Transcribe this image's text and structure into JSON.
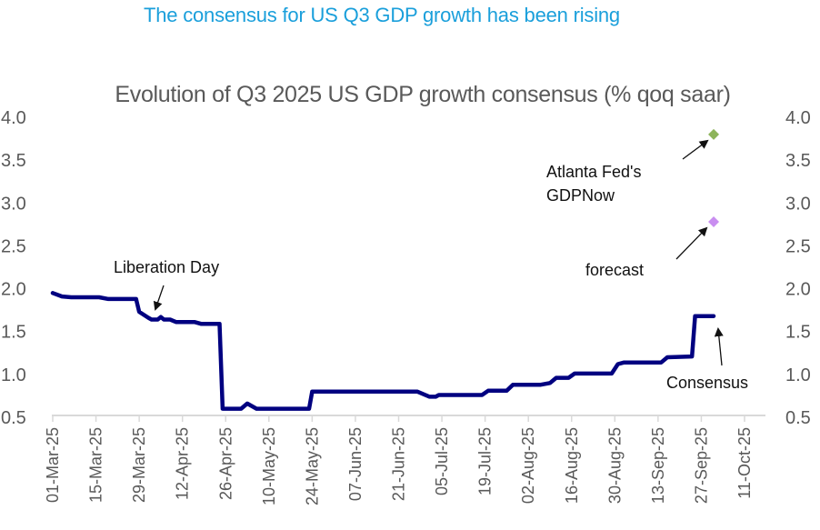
{
  "headline": "The consensus for US Q3 GDP growth has been rising",
  "chart_data": {
    "type": "line",
    "title": "Evolution of Q3 2025 US GDP growth consensus (% qoq saar)",
    "xlabel": "",
    "ylabel": "",
    "ylim": [
      0.5,
      4.0
    ],
    "yticks": [
      "4.0",
      "3.5",
      "3.0",
      "2.5",
      "2.0",
      "1.5",
      "1.0",
      "0.5"
    ],
    "ytick_values": [
      4.0,
      3.5,
      3.0,
      2.5,
      2.0,
      1.5,
      1.0,
      0.5
    ],
    "xlim_days_from_start": [
      0,
      224
    ],
    "x_start_date": "01-Mar-25",
    "xticks": [
      "01-Mar-25",
      "15-Mar-25",
      "29-Mar-25",
      "12-Apr-25",
      "26-Apr-25",
      "10-May-25",
      "24-May-25",
      "07-Jun-25",
      "21-Jun-25",
      "05-Jul-25",
      "19-Jul-25",
      "02-Aug-25",
      "16-Aug-25",
      "30-Aug-25",
      "13-Sep-25",
      "27-Sep-25",
      "11-Oct-25"
    ],
    "xtick_days": [
      0,
      14,
      28,
      42,
      56,
      70,
      84,
      98,
      112,
      126,
      140,
      154,
      168,
      182,
      196,
      210,
      224
    ],
    "grid": false,
    "dual_y_axis": true,
    "series": [
      {
        "name": "Consensus",
        "color": "#000080",
        "x_days": [
          0,
          3,
          6,
          15,
          18,
          27,
          28,
          31,
          32,
          34,
          35,
          36,
          38,
          40,
          46,
          48,
          54,
          55,
          61,
          63,
          66,
          83,
          84,
          118,
          122,
          124,
          125,
          139,
          141,
          147,
          149,
          158,
          161,
          163,
          167,
          169,
          181,
          183,
          185,
          197,
          199,
          207,
          208,
          214
        ],
        "values": [
          1.95,
          1.91,
          1.9,
          1.9,
          1.88,
          1.88,
          1.73,
          1.66,
          1.64,
          1.64,
          1.67,
          1.64,
          1.64,
          1.61,
          1.61,
          1.59,
          1.59,
          0.6,
          0.6,
          0.66,
          0.6,
          0.6,
          0.8,
          0.8,
          0.74,
          0.74,
          0.76,
          0.76,
          0.81,
          0.81,
          0.88,
          0.88,
          0.9,
          0.96,
          0.96,
          1.01,
          1.01,
          1.12,
          1.14,
          1.14,
          1.2,
          1.21,
          1.68,
          1.68
        ]
      },
      {
        "name": "Atlanta Fed's GDPNow",
        "type": "marker",
        "color": "#8db45a",
        "x_days": [
          214
        ],
        "values": [
          3.8
        ]
      },
      {
        "name": "forecast",
        "type": "marker",
        "color": "#c98ef0",
        "x_days": [
          214
        ],
        "values": [
          2.78
        ]
      }
    ],
    "annotations": [
      {
        "text": "Liberation Day",
        "x_day": 34,
        "value": 1.68
      },
      {
        "text": "Atlanta Fed's",
        "x_day": 214,
        "value": 3.8
      },
      {
        "text": "GDPNow",
        "x_day": 214,
        "value": 3.8
      },
      {
        "text": "forecast",
        "x_day": 214,
        "value": 2.78
      },
      {
        "text": "Consensus",
        "x_day": 214,
        "value": 1.68
      }
    ]
  }
}
